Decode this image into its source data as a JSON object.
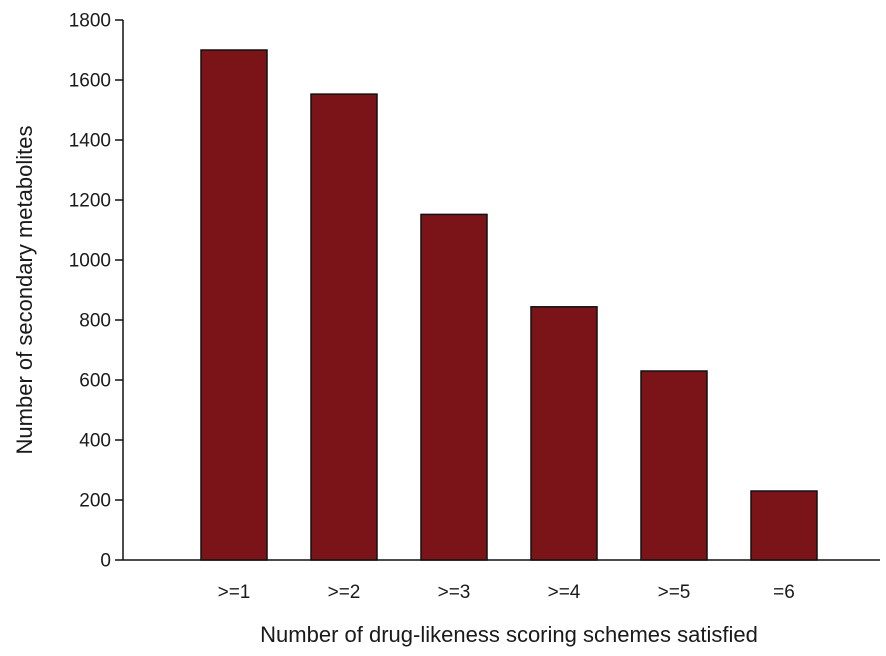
{
  "chart_data": {
    "type": "bar",
    "categories": [
      ">=1",
      ">=2",
      ">=3",
      ">=4",
      ">=5",
      "=6"
    ],
    "values": [
      1700,
      1553,
      1152,
      844,
      630,
      230
    ],
    "xlabel": "Number of drug-likeness scoring schemes satisfied",
    "ylabel": "Number of secondary metabolites",
    "ylim": [
      0,
      1800
    ],
    "yticks": [
      0,
      200,
      400,
      600,
      800,
      1000,
      1200,
      1400,
      1600,
      1800
    ],
    "grid": false,
    "legend": "none",
    "colors": {
      "bar_fill": "#7a1418",
      "bar_stroke": "#111111",
      "axis": "#111111"
    }
  }
}
